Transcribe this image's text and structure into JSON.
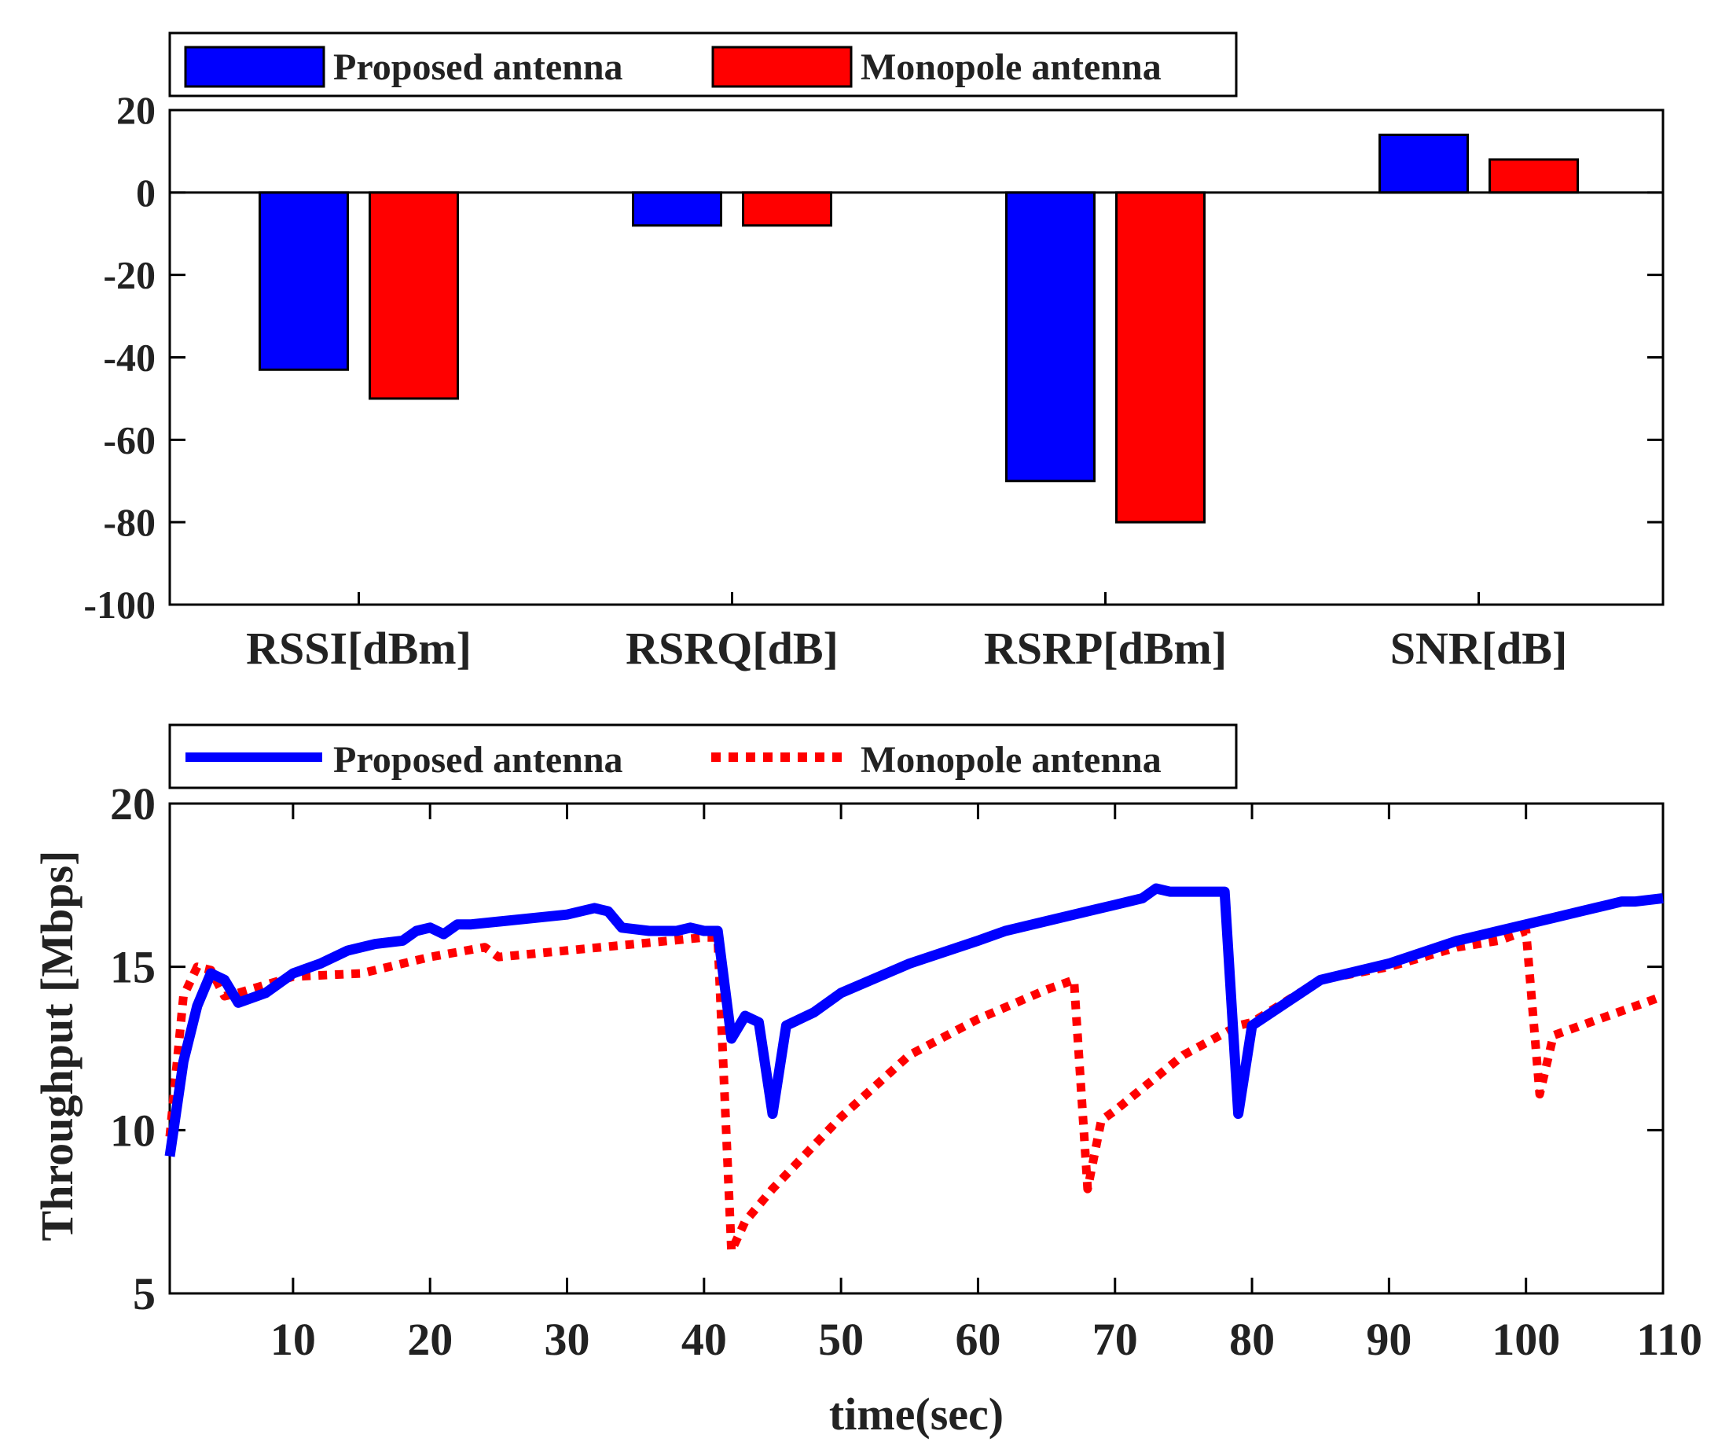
{
  "colors": {
    "proposed": "#0000ff",
    "monopole": "#ff0000",
    "axis": "#222222",
    "frame": "#000000"
  },
  "chart_data": [
    {
      "type": "bar",
      "categories": [
        "RSSI[dBm]",
        "RSRQ[dB]",
        "RSRP[dBm]",
        "SNR[dB]"
      ],
      "series": [
        {
          "name": "Proposed antenna",
          "values": [
            -43,
            -8,
            -70,
            14
          ]
        },
        {
          "name": "Monopole antenna",
          "values": [
            -50,
            -8,
            -80,
            8
          ]
        }
      ],
      "ylim": [
        -100,
        20
      ],
      "yticks": [
        -100,
        -80,
        -60,
        -40,
        -20,
        0,
        20
      ],
      "ytick_labels": [
        "-100",
        "-80",
        "-60",
        "-40",
        "-20",
        "0",
        "20"
      ],
      "legend": {
        "placement": "top-outside",
        "entries": [
          "Proposed antenna",
          "Monopole antenna"
        ]
      },
      "xlabel": "",
      "ylabel": "",
      "title": ""
    },
    {
      "type": "line",
      "xlim": [
        1,
        110
      ],
      "ylim": [
        5,
        20
      ],
      "xticks": [
        10,
        20,
        30,
        40,
        50,
        60,
        70,
        80,
        90,
        100,
        110
      ],
      "xtick_labels": [
        "10",
        "20",
        "30",
        "40",
        "50",
        "60",
        "70",
        "80",
        "90",
        "100",
        "110"
      ],
      "yticks": [
        5,
        10,
        15,
        20
      ],
      "ytick_labels": [
        "5",
        "10",
        "15",
        "20"
      ],
      "xlabel": "time(sec)",
      "ylabel": "Throughput [Mbps]",
      "legend": {
        "placement": "top-outside",
        "entries": [
          "Proposed antenna",
          "Monopole antenna"
        ]
      },
      "series": [
        {
          "name": "Proposed antenna",
          "style": "solid",
          "x": [
            1,
            2,
            3,
            4,
            5,
            6,
            8,
            10,
            12,
            14,
            16,
            18,
            19,
            20,
            21,
            22,
            23,
            30,
            32,
            33,
            34,
            36,
            38,
            39,
            40,
            41,
            42,
            43,
            44,
            45,
            46,
            48,
            50,
            55,
            60,
            62,
            65,
            70,
            72,
            73,
            74,
            75,
            76,
            77,
            78,
            79,
            80,
            85,
            90,
            95,
            98,
            100,
            102,
            104,
            106,
            107,
            108,
            110
          ],
          "y": [
            9.2,
            12.1,
            13.8,
            14.8,
            14.6,
            13.9,
            14.2,
            14.8,
            15.1,
            15.5,
            15.7,
            15.8,
            16.1,
            16.2,
            16.0,
            16.3,
            16.3,
            16.6,
            16.8,
            16.7,
            16.2,
            16.1,
            16.1,
            16.2,
            16.1,
            16.1,
            12.8,
            13.5,
            13.3,
            10.5,
            13.2,
            13.6,
            14.2,
            15.1,
            15.8,
            16.1,
            16.4,
            16.9,
            17.1,
            17.4,
            17.3,
            17.3,
            17.3,
            17.3,
            17.3,
            10.5,
            13.2,
            14.6,
            15.1,
            15.8,
            16.1,
            16.3,
            16.5,
            16.7,
            16.9,
            17.0,
            17.0,
            17.1
          ]
        },
        {
          "name": "Monopole antenna",
          "style": "dotted",
          "x": [
            1,
            2,
            3,
            4,
            5,
            6,
            10,
            15,
            20,
            24,
            25,
            30,
            35,
            40,
            41,
            42,
            43,
            45,
            50,
            55,
            60,
            65,
            67,
            68,
            69,
            70,
            75,
            79,
            80,
            85,
            90,
            95,
            98,
            100,
            101,
            102,
            104,
            106,
            108,
            110
          ],
          "y": [
            9.8,
            14.1,
            15.0,
            14.9,
            14.1,
            14.2,
            14.7,
            14.8,
            15.3,
            15.6,
            15.3,
            15.5,
            15.7,
            15.9,
            15.9,
            6.3,
            7.2,
            8.2,
            10.4,
            12.3,
            13.4,
            14.3,
            14.6,
            8.2,
            10.3,
            10.6,
            12.3,
            13.2,
            13.3,
            14.6,
            15.0,
            15.6,
            15.8,
            16.1,
            11.1,
            12.9,
            13.2,
            13.5,
            13.8,
            14.1
          ]
        }
      ]
    }
  ]
}
